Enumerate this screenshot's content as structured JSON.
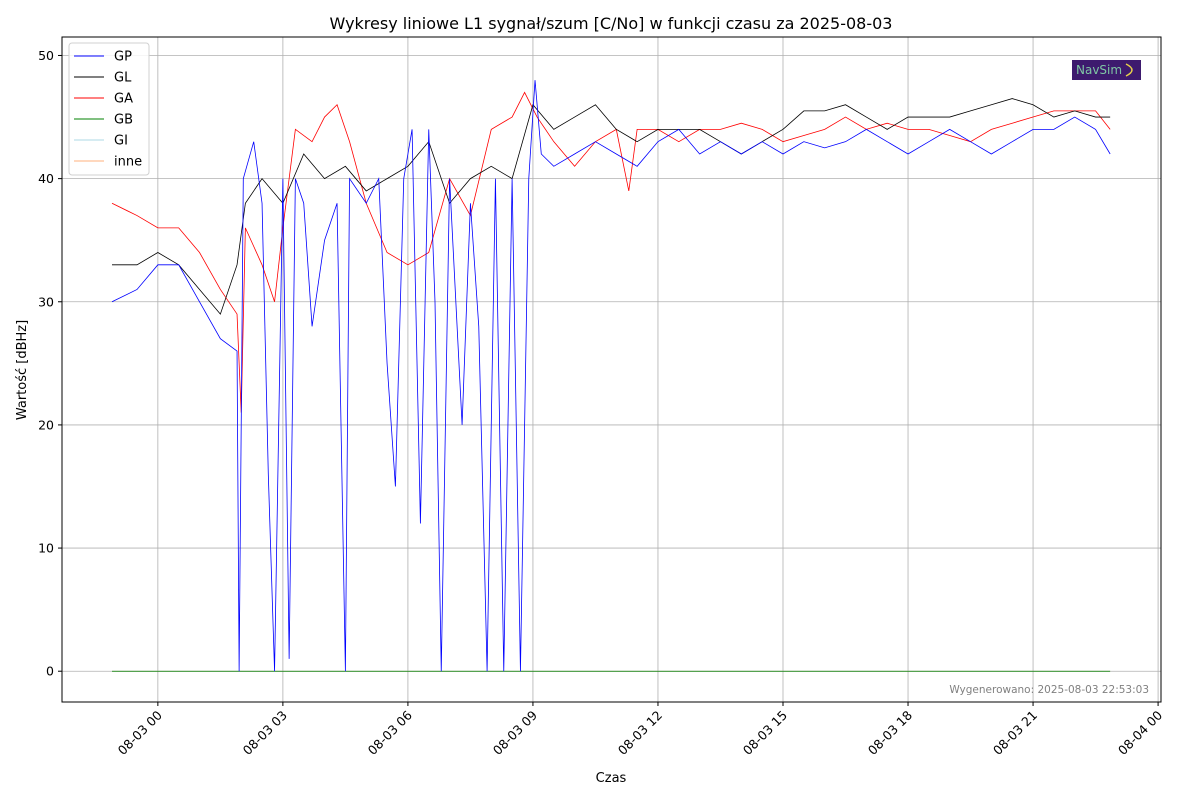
{
  "chart_data": {
    "type": "line",
    "title": "Wykresy liniowe L1 sygnał/szum [C/No] w funkcji czasu za 2025-08-03",
    "xlabel": "Czas",
    "ylabel": "Wartość [dBHz]",
    "x_unit": "hours relative to 2025-08-03 00:00",
    "xlim": [
      -2.3,
      24.07
    ],
    "ylim": [
      -2.5,
      51.5
    ],
    "grid": true,
    "legend_position": "top-left",
    "x_ticks": [
      {
        "value": 0,
        "label": "08-03 00"
      },
      {
        "value": 3,
        "label": "08-03 03"
      },
      {
        "value": 6,
        "label": "08-03 06"
      },
      {
        "value": 9,
        "label": "08-03 09"
      },
      {
        "value": 12,
        "label": "08-03 12"
      },
      {
        "value": 15,
        "label": "08-03 15"
      },
      {
        "value": 18,
        "label": "08-03 18"
      },
      {
        "value": 21,
        "label": "08-03 21"
      },
      {
        "value": 24,
        "label": "08-04 00"
      }
    ],
    "y_ticks": [
      {
        "value": 0,
        "label": "0"
      },
      {
        "value": 10,
        "label": "10"
      },
      {
        "value": 20,
        "label": "20"
      },
      {
        "value": 30,
        "label": "30"
      },
      {
        "value": 40,
        "label": "40"
      },
      {
        "value": 50,
        "label": "50"
      }
    ],
    "series": [
      {
        "name": "GP",
        "color": "#0000ff",
        "points": [
          [
            -1.1,
            30
          ],
          [
            -0.5,
            31
          ],
          [
            0,
            33
          ],
          [
            0.5,
            33
          ],
          [
            1,
            30
          ],
          [
            1.5,
            27
          ],
          [
            1.9,
            26
          ],
          [
            1.95,
            0
          ],
          [
            2.05,
            40
          ],
          [
            2.3,
            43
          ],
          [
            2.5,
            38
          ],
          [
            2.65,
            16
          ],
          [
            2.8,
            0
          ],
          [
            3.0,
            40
          ],
          [
            3.15,
            1
          ],
          [
            3.3,
            40
          ],
          [
            3.5,
            38
          ],
          [
            3.7,
            28
          ],
          [
            4,
            35
          ],
          [
            4.3,
            38
          ],
          [
            4.5,
            0
          ],
          [
            4.6,
            40
          ],
          [
            5,
            38
          ],
          [
            5.3,
            40
          ],
          [
            5.5,
            25
          ],
          [
            5.7,
            15
          ],
          [
            5.9,
            40
          ],
          [
            6.1,
            44
          ],
          [
            6.3,
            12
          ],
          [
            6.5,
            44
          ],
          [
            6.65,
            30
          ],
          [
            6.8,
            0
          ],
          [
            7,
            40
          ],
          [
            7.3,
            20
          ],
          [
            7.5,
            38
          ],
          [
            7.7,
            28
          ],
          [
            7.9,
            0
          ],
          [
            8.1,
            40
          ],
          [
            8.3,
            0
          ],
          [
            8.5,
            40
          ],
          [
            8.7,
            0
          ],
          [
            8.9,
            40
          ],
          [
            9.05,
            48
          ],
          [
            9.2,
            42
          ],
          [
            9.5,
            41
          ],
          [
            10,
            42
          ],
          [
            10.5,
            43
          ],
          [
            11,
            42
          ],
          [
            11.5,
            41
          ],
          [
            12,
            43
          ],
          [
            12.5,
            44
          ],
          [
            13,
            42
          ],
          [
            13.5,
            43
          ],
          [
            14,
            42
          ],
          [
            14.5,
            43
          ],
          [
            15,
            42
          ],
          [
            15.5,
            43
          ],
          [
            16,
            42.5
          ],
          [
            16.5,
            43
          ],
          [
            17,
            44
          ],
          [
            17.5,
            43
          ],
          [
            18,
            42
          ],
          [
            18.5,
            43
          ],
          [
            19,
            44
          ],
          [
            19.5,
            43
          ],
          [
            20,
            42
          ],
          [
            20.5,
            43
          ],
          [
            21,
            44
          ],
          [
            21.5,
            44
          ],
          [
            22,
            45
          ],
          [
            22.5,
            44
          ],
          [
            22.85,
            42
          ]
        ]
      },
      {
        "name": "GL",
        "color": "#000000",
        "points": [
          [
            -1.1,
            33
          ],
          [
            -0.5,
            33
          ],
          [
            0,
            34
          ],
          [
            0.5,
            33
          ],
          [
            1,
            31
          ],
          [
            1.5,
            29
          ],
          [
            1.9,
            33
          ],
          [
            2.1,
            38
          ],
          [
            2.5,
            40
          ],
          [
            3,
            38
          ],
          [
            3.5,
            42
          ],
          [
            4,
            40
          ],
          [
            4.5,
            41
          ],
          [
            5,
            39
          ],
          [
            5.5,
            40
          ],
          [
            6,
            41
          ],
          [
            6.5,
            43
          ],
          [
            7,
            38
          ],
          [
            7.5,
            40
          ],
          [
            8,
            41
          ],
          [
            8.5,
            40
          ],
          [
            9,
            46
          ],
          [
            9.5,
            44
          ],
          [
            10,
            45
          ],
          [
            10.5,
            46
          ],
          [
            11,
            44
          ],
          [
            11.5,
            43
          ],
          [
            12,
            44
          ],
          [
            12.5,
            44
          ],
          [
            13,
            44
          ],
          [
            13.5,
            43
          ],
          [
            14,
            42
          ],
          [
            14.5,
            43
          ],
          [
            15,
            44
          ],
          [
            15.5,
            45.5
          ],
          [
            16,
            45.5
          ],
          [
            16.5,
            46
          ],
          [
            17,
            45
          ],
          [
            17.5,
            44
          ],
          [
            18,
            45
          ],
          [
            18.5,
            45
          ],
          [
            19,
            45
          ],
          [
            19.5,
            45.5
          ],
          [
            20,
            46
          ],
          [
            20.5,
            46.5
          ],
          [
            21,
            46
          ],
          [
            21.5,
            45
          ],
          [
            22,
            45.5
          ],
          [
            22.5,
            45
          ],
          [
            22.85,
            45
          ]
        ]
      },
      {
        "name": "GA",
        "color": "#ff0000",
        "points": [
          [
            -1.1,
            38
          ],
          [
            -0.5,
            37
          ],
          [
            0,
            36
          ],
          [
            0.5,
            36
          ],
          [
            1,
            34
          ],
          [
            1.5,
            31
          ],
          [
            1.9,
            29
          ],
          [
            2.0,
            21
          ],
          [
            2.1,
            36
          ],
          [
            2.5,
            33
          ],
          [
            2.8,
            30
          ],
          [
            3,
            36
          ],
          [
            3.3,
            44
          ],
          [
            3.7,
            43
          ],
          [
            4,
            45
          ],
          [
            4.3,
            46
          ],
          [
            4.6,
            43
          ],
          [
            5,
            38
          ],
          [
            5.5,
            34
          ],
          [
            6,
            33
          ],
          [
            6.5,
            34
          ],
          [
            7,
            40
          ],
          [
            7.5,
            37
          ],
          [
            8,
            44
          ],
          [
            8.5,
            45
          ],
          [
            8.8,
            47
          ],
          [
            9.1,
            45
          ],
          [
            9.5,
            43
          ],
          [
            10,
            41
          ],
          [
            10.5,
            43
          ],
          [
            11,
            44
          ],
          [
            11.3,
            39
          ],
          [
            11.5,
            44
          ],
          [
            12,
            44
          ],
          [
            12.5,
            43
          ],
          [
            13,
            44
          ],
          [
            13.5,
            44
          ],
          [
            14,
            44.5
          ],
          [
            14.5,
            44
          ],
          [
            15,
            43
          ],
          [
            15.5,
            43.5
          ],
          [
            16,
            44
          ],
          [
            16.5,
            45
          ],
          [
            17,
            44
          ],
          [
            17.5,
            44.5
          ],
          [
            18,
            44
          ],
          [
            18.5,
            44
          ],
          [
            19,
            43.5
          ],
          [
            19.5,
            43
          ],
          [
            20,
            44
          ],
          [
            20.5,
            44.5
          ],
          [
            21,
            45
          ],
          [
            21.5,
            45.5
          ],
          [
            22,
            45.5
          ],
          [
            22.5,
            45.5
          ],
          [
            22.85,
            44
          ]
        ]
      },
      {
        "name": "GB",
        "color": "#008000",
        "points": [
          [
            -1.1,
            0
          ],
          [
            22.85,
            0
          ]
        ]
      },
      {
        "name": "GI",
        "color": "#add8e6",
        "points": [
          [
            -1.1,
            0
          ],
          [
            22.85,
            0
          ]
        ]
      },
      {
        "name": "inne",
        "color": "#ffb07c",
        "points": [
          [
            -1.1,
            0
          ],
          [
            22.85,
            0
          ]
        ]
      }
    ],
    "annotations": {
      "generated": "Wygenerowano: 2025-08-03 22:53:03",
      "logo": "NavSim"
    }
  }
}
